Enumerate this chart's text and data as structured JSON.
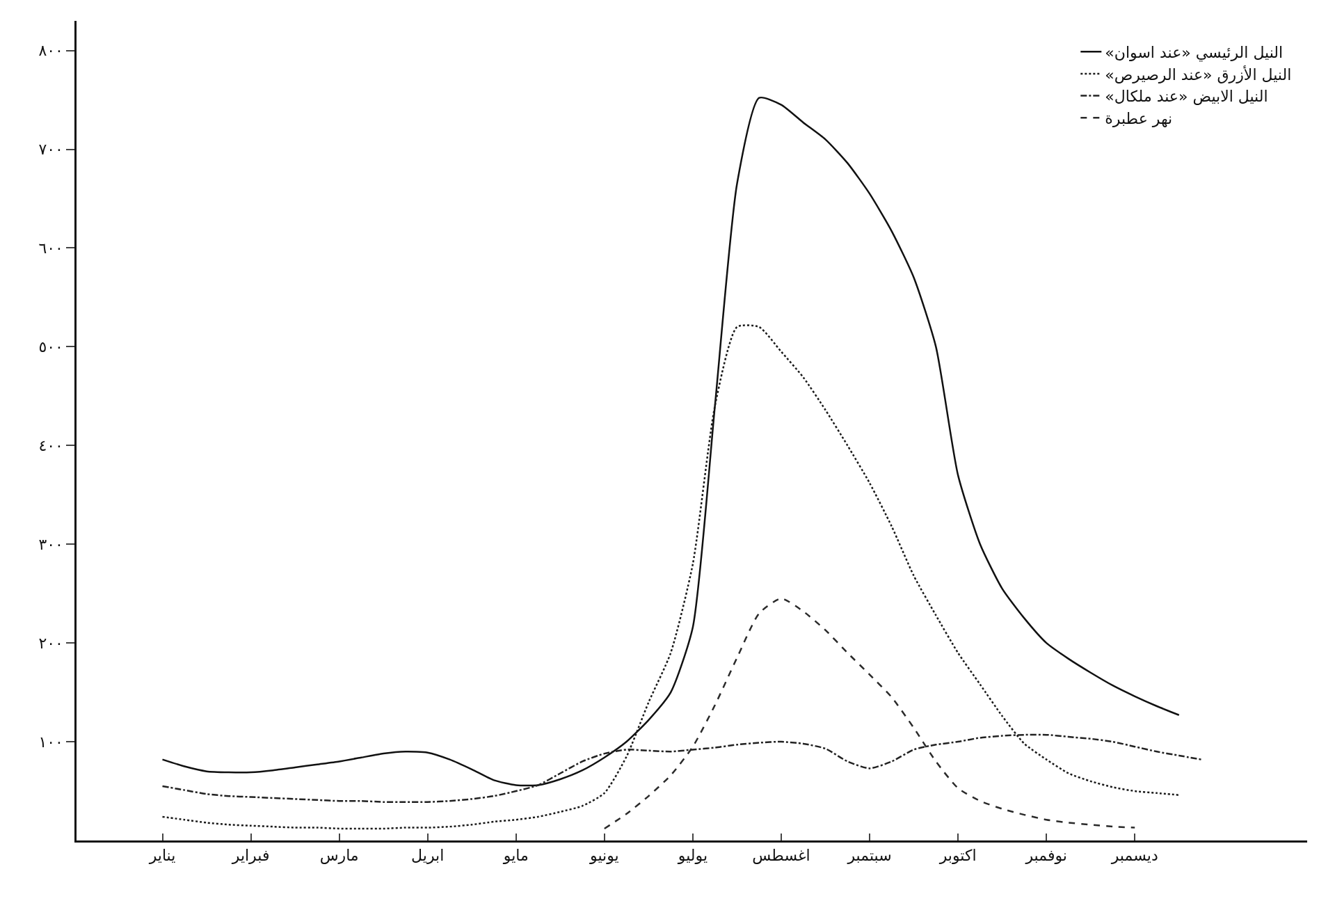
{
  "chart_data": {
    "type": "line",
    "categories": [
      "يناير",
      null,
      null,
      null,
      "فبراير",
      null,
      null,
      null,
      "مارس",
      null,
      null,
      null,
      "ابريل",
      null,
      null,
      null,
      "مايو",
      null,
      null,
      null,
      "يونيو",
      null,
      null,
      null,
      "يوليو",
      null,
      null,
      null,
      "اغسطس",
      null,
      null,
      null,
      "سبتمبر",
      null,
      null,
      null,
      "اكتوبر",
      null,
      null,
      null,
      "نوفمبر",
      null,
      null,
      null,
      "ديسمبر",
      null,
      null,
      null
    ],
    "ylim": [
      0,
      830
    ],
    "yticks": [
      {
        "value": 100,
        "label": "١٠٠"
      },
      {
        "value": 200,
        "label": "٢٠٠"
      },
      {
        "value": 300,
        "label": "٣٠٠"
      },
      {
        "value": 400,
        "label": "٤٠٠"
      },
      {
        "value": 500,
        "label": "٥٠٠"
      },
      {
        "value": 600,
        "label": "٦٠٠"
      },
      {
        "value": 700,
        "label": "٧٠٠"
      },
      {
        "value": 800,
        "label": "٨٠٠"
      }
    ],
    "legend": "top right",
    "marker": "none",
    "series": [
      {
        "name": "النيل الرئيسي «عند اسوان»",
        "color": "#111111",
        "line_style": "solid",
        "values": [
          82,
          75,
          70,
          69,
          69,
          71,
          74,
          77,
          80,
          84,
          88,
          90,
          89,
          82,
          72,
          61,
          56,
          56,
          62,
          71,
          84,
          100,
          122,
          150,
          216,
          440,
          665,
          752,
          745,
          727,
          710,
          686,
          655,
          617,
          570,
          500,
          370,
          300,
          255,
          225,
          200,
          184,
          170,
          157,
          146,
          136,
          127,
          null
        ]
      },
      {
        "name": "النيل الأزرق «عند الرصيرص»",
        "color": "#1a1a1a",
        "line_style": "dotted",
        "values": [
          24,
          21,
          18,
          16,
          15,
          14,
          13,
          13,
          12,
          12,
          12,
          13,
          13,
          14,
          16,
          19,
          21,
          24,
          29,
          35,
          48,
          85,
          140,
          190,
          280,
          440,
          520,
          520,
          495,
          469,
          436,
          400,
          362,
          318,
          268,
          228,
          190,
          158,
          126,
          98,
          82,
          68,
          60,
          54,
          50,
          48,
          46,
          null
        ]
      },
      {
        "name": "النيل الابيض «عند ملكال»",
        "color": "#222222",
        "line_style": "dashdot",
        "values": [
          55,
          51,
          47,
          45,
          44,
          43,
          42,
          41,
          40,
          40,
          39,
          39,
          39,
          40,
          42,
          45,
          50,
          56,
          68,
          80,
          88,
          92,
          91,
          90,
          92,
          94,
          97,
          99,
          100,
          98,
          93,
          80,
          73,
          80,
          92,
          97,
          100,
          104,
          106,
          107,
          107,
          105,
          103,
          100,
          95,
          90,
          86,
          82
        ]
      },
      {
        "name": "نهر عطبرة",
        "color": "#2a2a2a",
        "line_style": "dashed",
        "values": [
          null,
          null,
          null,
          null,
          null,
          null,
          null,
          null,
          null,
          null,
          null,
          null,
          null,
          null,
          null,
          null,
          null,
          null,
          null,
          null,
          12,
          27,
          45,
          66,
          95,
          137,
          185,
          230,
          245,
          232,
          213,
          190,
          168,
          145,
          114,
          80,
          53,
          40,
          32,
          26,
          21,
          18,
          16,
          14,
          13,
          null,
          null,
          null
        ]
      }
    ]
  }
}
